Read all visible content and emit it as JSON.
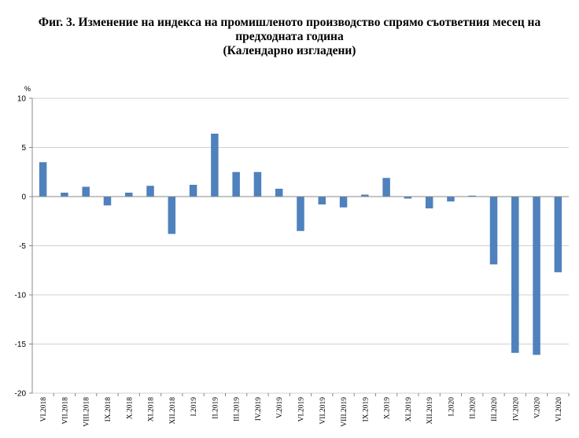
{
  "title_lines": [
    "Фиг. 3. Изменение на индекса на промишленото производство спрямо съответния месец на",
    "предходната година",
    "(Календарно изгладени)"
  ],
  "chart_data": {
    "type": "bar",
    "ylabel": "%",
    "ylim": [
      -20,
      10
    ],
    "yticks": [
      10,
      5,
      0,
      -5,
      -10,
      -15,
      -20
    ],
    "grid": true,
    "legend": "none",
    "bar_color": "#4F81BD",
    "categories": [
      "VI.2018",
      "VII.2018",
      "VIII.2018",
      "IX.2018",
      "X.2018",
      "XI.2018",
      "XII.2018",
      "I.2019",
      "II.2019",
      "III.2019",
      "IV.2019",
      "V.2019",
      "VI.2019",
      "VII.2019",
      "VIII.2019",
      "IX.2019",
      "X.2019",
      "XI.2019",
      "XII.2019",
      "I.2020",
      "II.2020",
      "III.2020",
      "IV.2020",
      "V.2020",
      "VI.2020"
    ],
    "values": [
      3.5,
      0.4,
      1.0,
      -0.9,
      0.4,
      1.1,
      -3.8,
      1.2,
      6.4,
      2.5,
      2.5,
      0.8,
      -3.5,
      -0.8,
      -1.1,
      0.2,
      1.9,
      -0.2,
      -1.2,
      -0.5,
      0.1,
      -6.9,
      -15.9,
      -16.1,
      -7.7
    ]
  }
}
